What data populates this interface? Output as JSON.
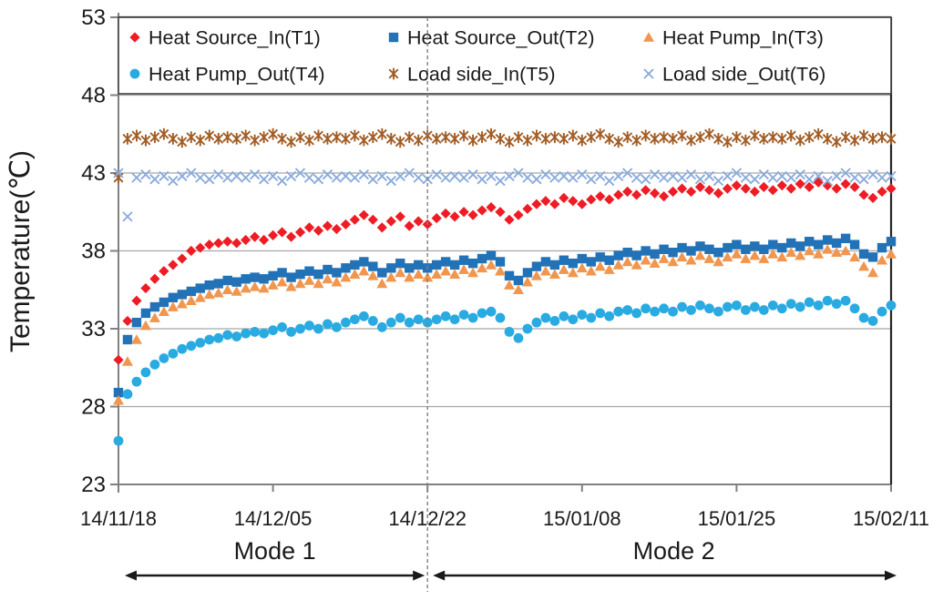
{
  "chart_data": {
    "type": "scatter",
    "title": "",
    "ylabel": "Temperature(℃)",
    "xlabel": "",
    "ylim": [
      23,
      53
    ],
    "yticks": [
      23,
      28,
      33,
      38,
      43,
      48,
      53
    ],
    "xtick_labels": [
      "14/11/18",
      "14/12/05",
      "14/12/22",
      "15/01/08",
      "15/01/25",
      "15/02/11"
    ],
    "xtick_days": [
      0,
      17,
      34,
      51,
      68,
      85
    ],
    "x_step_days": 1,
    "x_range_days": [
      0,
      85
    ],
    "grid": "horizontal",
    "legend_position": "top-inside-box",
    "annotations": {
      "divider_day": 34,
      "modes": [
        {
          "label": "Mode 1",
          "from_day": 0,
          "to_day": 34
        },
        {
          "label": "Mode 2",
          "from_day": 34,
          "to_day": 85
        }
      ]
    },
    "colors": {
      "grid": "#a8a8a8",
      "axis": "#808080",
      "frame": "#262626",
      "text": "#1a1a1a",
      "divider": "#7f7f7f",
      "arrow": "#1a1a1a",
      "legend_border": "#404040",
      "background": "#ffffff"
    },
    "series": [
      {
        "id": "t1",
        "name": "Heat Source_In(T1)",
        "marker": "diamond",
        "color": "#ee1c25",
        "values": [
          31.0,
          33.5,
          34.8,
          35.6,
          36.2,
          36.7,
          37.1,
          37.5,
          38.0,
          38.2,
          38.4,
          38.5,
          38.6,
          38.5,
          38.7,
          38.9,
          38.7,
          39.0,
          39.2,
          38.9,
          39.2,
          39.5,
          39.3,
          39.6,
          39.4,
          39.7,
          40.0,
          40.3,
          40.0,
          39.5,
          39.9,
          40.2,
          39.6,
          39.9,
          39.7,
          40.1,
          40.4,
          40.2,
          40.5,
          40.3,
          40.6,
          40.8,
          40.5,
          40.0,
          40.3,
          40.7,
          41.0,
          41.2,
          41.0,
          41.4,
          41.2,
          41.0,
          41.3,
          41.5,
          41.3,
          41.6,
          41.8,
          41.6,
          41.9,
          41.7,
          41.5,
          41.8,
          42.0,
          41.8,
          42.1,
          41.9,
          41.7,
          42.0,
          42.2,
          42.0,
          41.8,
          42.1,
          41.9,
          42.2,
          42.0,
          42.3,
          42.1,
          42.4,
          42.2,
          42.0,
          42.3,
          42.1,
          41.6,
          41.4,
          41.8,
          42.0
        ]
      },
      {
        "id": "t2",
        "name": "Heat Source_Out(T2)",
        "marker": "square",
        "color": "#2272b8",
        "values": [
          28.9,
          32.3,
          33.4,
          34.0,
          34.4,
          34.7,
          35.0,
          35.2,
          35.4,
          35.6,
          35.8,
          35.9,
          36.1,
          36.0,
          36.2,
          36.3,
          36.2,
          36.4,
          36.6,
          36.3,
          36.5,
          36.7,
          36.5,
          36.8,
          36.6,
          36.9,
          37.1,
          37.3,
          37.0,
          36.6,
          36.9,
          37.2,
          36.9,
          37.1,
          36.9,
          37.1,
          37.3,
          37.1,
          37.4,
          37.2,
          37.5,
          37.7,
          37.3,
          36.4,
          36.1,
          36.6,
          37.0,
          37.3,
          37.1,
          37.4,
          37.2,
          37.5,
          37.3,
          37.6,
          37.4,
          37.7,
          37.9,
          37.7,
          38.0,
          37.8,
          38.1,
          37.9,
          38.2,
          38.0,
          38.3,
          38.1,
          37.9,
          38.2,
          38.4,
          38.1,
          38.3,
          38.1,
          38.4,
          38.2,
          38.5,
          38.3,
          38.6,
          38.4,
          38.7,
          38.5,
          38.8,
          38.4,
          37.8,
          37.6,
          38.2,
          38.6
        ]
      },
      {
        "id": "t3",
        "name": "Heat Pump_In(T3)",
        "marker": "triangle",
        "color": "#f0964e",
        "values": [
          28.4,
          30.9,
          32.3,
          33.2,
          33.7,
          34.1,
          34.4,
          34.6,
          34.8,
          35.0,
          35.2,
          35.3,
          35.5,
          35.4,
          35.6,
          35.7,
          35.6,
          35.8,
          36.0,
          35.7,
          35.9,
          36.1,
          35.9,
          36.2,
          36.0,
          36.3,
          36.5,
          36.7,
          36.4,
          35.9,
          36.3,
          36.6,
          36.3,
          36.5,
          36.3,
          36.5,
          36.7,
          36.5,
          36.8,
          36.6,
          36.9,
          37.1,
          36.7,
          35.8,
          35.5,
          36.0,
          36.4,
          36.7,
          36.5,
          36.8,
          36.6,
          36.9,
          36.7,
          37.0,
          36.8,
          37.1,
          37.3,
          37.1,
          37.4,
          37.2,
          37.5,
          37.3,
          37.6,
          37.4,
          37.7,
          37.5,
          37.3,
          37.6,
          37.8,
          37.5,
          37.7,
          37.5,
          37.8,
          37.6,
          37.9,
          37.7,
          38.0,
          37.8,
          38.1,
          37.9,
          38.0,
          37.6,
          37.0,
          36.6,
          37.4,
          37.8
        ]
      },
      {
        "id": "t4",
        "name": "Heat Pump_Out(T4)",
        "marker": "circle",
        "color": "#29abe2",
        "values": [
          25.8,
          28.8,
          29.6,
          30.2,
          30.7,
          31.1,
          31.4,
          31.7,
          31.9,
          32.1,
          32.3,
          32.4,
          32.6,
          32.5,
          32.7,
          32.8,
          32.7,
          32.9,
          33.1,
          32.8,
          33.0,
          33.2,
          33.0,
          33.3,
          33.1,
          33.4,
          33.6,
          33.8,
          33.5,
          33.1,
          33.4,
          33.7,
          33.4,
          33.6,
          33.4,
          33.6,
          33.8,
          33.6,
          33.9,
          33.7,
          34.0,
          34.1,
          33.7,
          32.8,
          32.4,
          33.0,
          33.4,
          33.7,
          33.5,
          33.8,
          33.6,
          33.9,
          33.7,
          34.0,
          33.8,
          34.1,
          34.2,
          34.0,
          34.3,
          34.1,
          34.3,
          34.1,
          34.4,
          34.2,
          34.5,
          34.3,
          34.1,
          34.4,
          34.5,
          34.2,
          34.4,
          34.2,
          34.5,
          34.3,
          34.6,
          34.4,
          34.7,
          34.5,
          34.8,
          34.6,
          34.8,
          34.3,
          33.7,
          33.5,
          34.1,
          34.5
        ]
      },
      {
        "id": "t5",
        "name": "Load side_In(T5)",
        "marker": "star",
        "color": "#a15c24",
        "values": [
          42.7,
          45.2,
          45.4,
          45.1,
          45.3,
          45.5,
          45.2,
          45.0,
          45.3,
          45.1,
          45.4,
          45.2,
          45.3,
          45.2,
          45.4,
          45.1,
          45.3,
          45.5,
          45.2,
          45.0,
          45.3,
          45.1,
          45.4,
          45.2,
          45.3,
          45.2,
          45.4,
          45.1,
          45.3,
          45.5,
          45.2,
          45.0,
          45.3,
          45.1,
          45.4,
          45.2,
          45.3,
          45.2,
          45.4,
          45.1,
          45.3,
          45.5,
          45.2,
          45.0,
          45.3,
          45.1,
          45.4,
          45.2,
          45.3,
          45.2,
          45.4,
          45.1,
          45.3,
          45.5,
          45.2,
          45.0,
          45.3,
          45.1,
          45.4,
          45.2,
          45.3,
          45.2,
          45.4,
          45.1,
          45.3,
          45.5,
          45.2,
          45.0,
          45.3,
          45.1,
          45.4,
          45.2,
          45.3,
          45.2,
          45.4,
          45.1,
          45.3,
          45.5,
          45.2,
          45.0,
          45.3,
          45.1,
          45.4,
          45.2,
          45.3,
          45.2
        ]
      },
      {
        "id": "t6",
        "name": "Load side_Out(T6)",
        "marker": "x",
        "color": "#8aabdc",
        "values": [
          43.0,
          40.2,
          42.7,
          42.9,
          42.6,
          42.8,
          42.5,
          42.8,
          43.0,
          42.7,
          42.6,
          42.9,
          42.7,
          42.8,
          42.7,
          42.9,
          42.6,
          42.8,
          42.5,
          42.8,
          43.0,
          42.7,
          42.6,
          42.9,
          42.7,
          42.8,
          42.7,
          42.9,
          42.6,
          42.8,
          42.5,
          42.8,
          43.0,
          42.7,
          42.6,
          42.9,
          42.7,
          42.8,
          42.7,
          42.9,
          42.6,
          42.8,
          42.5,
          42.8,
          43.0,
          42.7,
          42.6,
          42.9,
          42.7,
          42.8,
          42.7,
          42.9,
          42.6,
          42.8,
          42.5,
          42.8,
          43.0,
          42.7,
          42.6,
          42.9,
          42.7,
          42.8,
          42.7,
          42.9,
          42.6,
          42.8,
          42.5,
          42.8,
          43.0,
          42.7,
          42.6,
          42.9,
          42.7,
          42.8,
          42.7,
          42.9,
          42.6,
          42.8,
          42.5,
          42.8,
          43.0,
          42.7,
          42.6,
          42.9,
          42.7,
          42.8
        ]
      }
    ]
  }
}
